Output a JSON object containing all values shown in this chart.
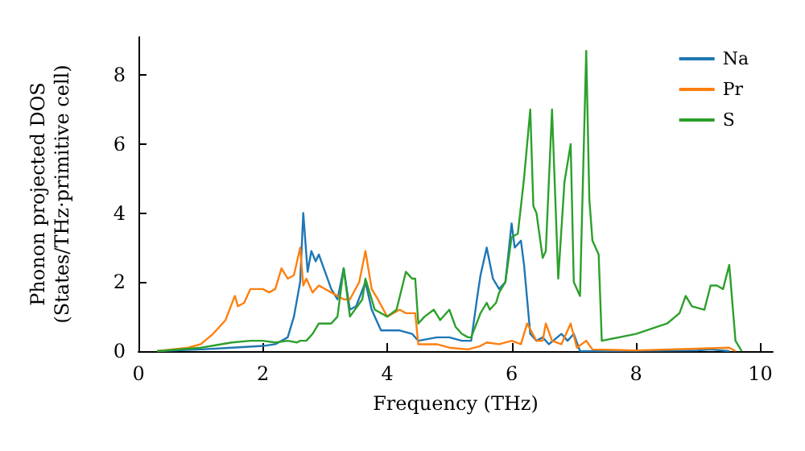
{
  "chart_data": {
    "type": "line",
    "xlabel": "Frequency (THz)",
    "ylabel": "Phonon projected DOS\n(States/THz·primitive cell)",
    "xlim": [
      0,
      10.2
    ],
    "ylim": [
      0,
      9.1
    ],
    "xticks": [
      0,
      2,
      4,
      6,
      8,
      10
    ],
    "yticks": [
      0,
      2,
      4,
      6,
      8
    ],
    "grid": false,
    "legend": "top right",
    "marker": "none",
    "line_style": "solid",
    "series": [
      {
        "name": "Na",
        "color": "#1f77b4",
        "x": [
          0.3,
          1,
          1.5,
          2,
          2.2,
          2.4,
          2.5,
          2.6,
          2.65,
          2.72,
          2.78,
          2.85,
          2.9,
          3.0,
          3.1,
          3.2,
          3.3,
          3.4,
          3.5,
          3.65,
          3.75,
          3.9,
          4.2,
          4.4,
          4.5,
          4.8,
          5.0,
          5.2,
          5.35,
          5.45,
          5.5,
          5.6,
          5.7,
          5.8,
          5.9,
          6.0,
          6.05,
          6.15,
          6.2,
          6.3,
          6.4,
          6.5,
          6.6,
          6.8,
          6.9,
          7.0,
          7.1,
          7.5,
          9,
          9.2,
          9.5
        ],
        "values": [
          0,
          0.05,
          0.1,
          0.15,
          0.2,
          0.4,
          1.0,
          2.0,
          4.0,
          2.3,
          2.9,
          2.6,
          2.8,
          2.3,
          1.8,
          1.5,
          2.4,
          1.2,
          1.3,
          2.0,
          1.2,
          0.6,
          0.6,
          0.5,
          0.3,
          0.4,
          0.4,
          0.3,
          0.3,
          1.6,
          2.2,
          3.0,
          2.1,
          1.8,
          2.0,
          3.7,
          3.0,
          3.2,
          2.5,
          0.5,
          0.3,
          0.4,
          0.2,
          0.5,
          0.3,
          0.5,
          0,
          0,
          0.02,
          0.05,
          0
        ]
      },
      {
        "name": "Pr",
        "color": "#ff7f0e",
        "x": [
          0.3,
          0.8,
          1.0,
          1.2,
          1.4,
          1.55,
          1.6,
          1.7,
          1.8,
          2.0,
          2.1,
          2.2,
          2.3,
          2.4,
          2.5,
          2.6,
          2.65,
          2.7,
          2.8,
          2.9,
          3.1,
          3.3,
          3.4,
          3.55,
          3.65,
          3.75,
          3.85,
          4.0,
          4.2,
          4.3,
          4.45,
          4.5,
          4.8,
          5.0,
          5.3,
          5.5,
          5.6,
          5.8,
          6.0,
          6.15,
          6.25,
          6.4,
          6.5,
          6.55,
          6.65,
          6.8,
          6.95,
          7.05,
          7.2,
          7.3,
          8,
          9.5,
          9.6
        ],
        "values": [
          0,
          0.1,
          0.2,
          0.5,
          0.9,
          1.6,
          1.3,
          1.4,
          1.8,
          1.8,
          1.7,
          1.8,
          2.4,
          2.1,
          2.2,
          3.0,
          1.9,
          2.1,
          1.7,
          1.9,
          1.7,
          1.5,
          1.5,
          2.0,
          2.9,
          1.8,
          1.5,
          1.0,
          1.2,
          1.1,
          1.1,
          0.2,
          0.2,
          0.1,
          0.05,
          0.15,
          0.25,
          0.2,
          0.3,
          0.2,
          0.8,
          0.3,
          0.3,
          0.8,
          0.3,
          0.2,
          0.8,
          0.1,
          0.3,
          0.05,
          0.02,
          0.1,
          0
        ]
      },
      {
        "name": "S",
        "color": "#2ca02c",
        "x": [
          0.3,
          1,
          1.5,
          1.8,
          2.0,
          2.2,
          2.4,
          2.55,
          2.6,
          2.7,
          2.8,
          2.9,
          3.1,
          3.2,
          3.3,
          3.4,
          3.6,
          3.65,
          3.8,
          4.0,
          4.15,
          4.3,
          4.4,
          4.45,
          4.5,
          4.6,
          4.75,
          4.85,
          5.0,
          5.1,
          5.2,
          5.3,
          5.35,
          5.5,
          5.6,
          5.65,
          5.75,
          5.8,
          5.9,
          6.0,
          6.1,
          6.2,
          6.3,
          6.35,
          6.4,
          6.5,
          6.55,
          6.65,
          6.75,
          6.85,
          6.95,
          7.0,
          7.1,
          7.2,
          7.25,
          7.3,
          7.4,
          7.45,
          8.0,
          8.5,
          8.7,
          8.8,
          8.9,
          9.1,
          9.2,
          9.3,
          9.4,
          9.5,
          9.6,
          9.7
        ],
        "values": [
          0,
          0.1,
          0.25,
          0.3,
          0.3,
          0.25,
          0.3,
          0.25,
          0.3,
          0.3,
          0.5,
          0.8,
          0.8,
          1.0,
          2.4,
          1.0,
          1.5,
          2.1,
          1.2,
          1.0,
          1.2,
          2.3,
          2.1,
          2.1,
          0.8,
          1.0,
          1.2,
          0.9,
          1.2,
          0.7,
          0.5,
          0.4,
          0.4,
          1.1,
          1.4,
          1.2,
          1.4,
          1.7,
          2.0,
          3.3,
          3.4,
          5.0,
          7.0,
          4.2,
          4.0,
          2.7,
          2.9,
          7.0,
          2.1,
          4.9,
          6.0,
          2.0,
          1.6,
          8.7,
          4.4,
          3.2,
          2.8,
          0.3,
          0.5,
          0.8,
          1.1,
          1.6,
          1.3,
          1.2,
          1.9,
          1.9,
          1.8,
          2.5,
          0.3,
          0
        ]
      }
    ]
  }
}
